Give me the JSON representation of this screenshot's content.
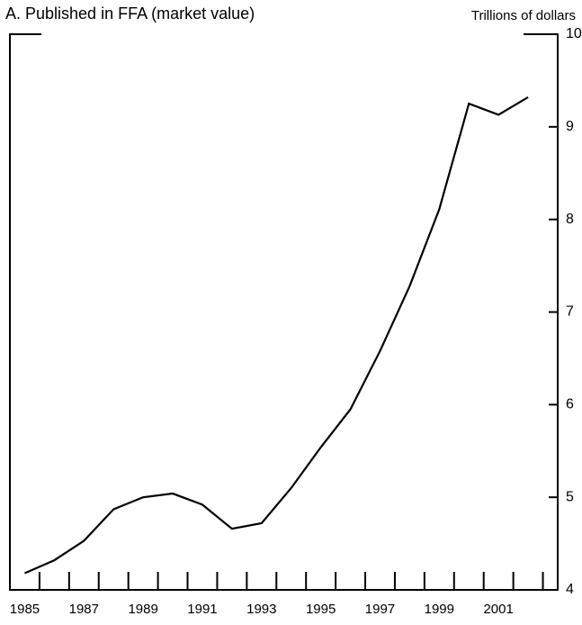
{
  "chart_data": {
    "type": "line",
    "title": "A. Published in FFA (market value)",
    "y_axis_label": "Trillions of dollars",
    "x": [
      1985,
      1986,
      1987,
      1988,
      1989,
      1990,
      1991,
      1992,
      1993,
      1994,
      1995,
      1996,
      1997,
      1998,
      1999,
      2000,
      2001,
      2002
    ],
    "series": [
      {
        "color": "#000000",
        "values": [
          4.18,
          4.32,
          4.53,
          4.87,
          5.0,
          5.04,
          4.92,
          4.66,
          4.72,
          5.1,
          5.54,
          5.95,
          6.58,
          7.28,
          8.11,
          9.25,
          9.13,
          9.32
        ]
      }
    ],
    "xlim": [
      1984.5,
      2003
    ],
    "xticks": [
      1985,
      1987,
      1989,
      1991,
      1993,
      1995,
      1997,
      1999,
      2001
    ],
    "ylim": [
      4,
      10
    ],
    "yticks": [
      4,
      5,
      6,
      7,
      8,
      9,
      10
    ],
    "grid": false
  }
}
